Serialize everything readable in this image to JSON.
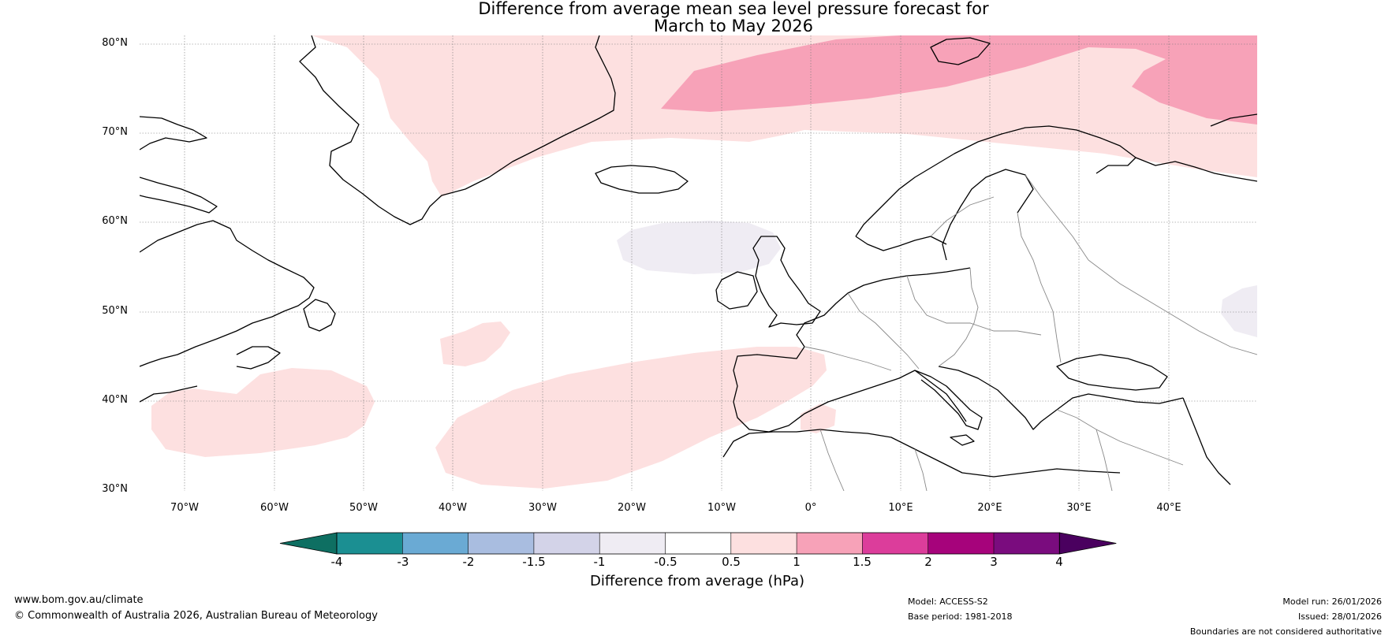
{
  "title": {
    "line1": "Difference from average mean sea level pressure forecast for",
    "line2": "March to May 2026"
  },
  "axes": {
    "lat_labels": [
      "80°N",
      "70°N",
      "60°N",
      "50°N",
      "40°N",
      "30°N"
    ],
    "lon_labels": [
      "70°W",
      "60°W",
      "50°W",
      "40°W",
      "30°W",
      "20°W",
      "10°W",
      "0°",
      "10°E",
      "20°E",
      "30°E",
      "40°E"
    ]
  },
  "colorbar": {
    "label": "Difference from average (hPa)",
    "ticks": [
      "-4",
      "-3",
      "-2",
      "-1.5",
      "-1",
      "-0.5",
      "0.5",
      "1",
      "1.5",
      "2",
      "3",
      "4"
    ],
    "colors": [
      "#1b8f92",
      "#6aaad4",
      "#a9bde0",
      "#d3d3e8",
      "#efecf3",
      "#ffffff",
      "#fde0e0",
      "#f7a2b8",
      "#dc3d9b",
      "#a6037b",
      "#7a0c7e"
    ],
    "low_extend_color": "#0e6f62",
    "high_extend_color": "#4a005f"
  },
  "footer": {
    "website": "www.bom.gov.au/climate",
    "copyright": "© Commonwealth of Australia 2026, Australian Bureau of Meteorology",
    "model": "Model: ACCESS-S2",
    "base_period": "Base period: 1981-2018",
    "model_run": "Model run: 26/01/2026",
    "issued": "Issued: 28/01/2026",
    "disclaimer": "Boundaries are not considered authoritative"
  }
}
